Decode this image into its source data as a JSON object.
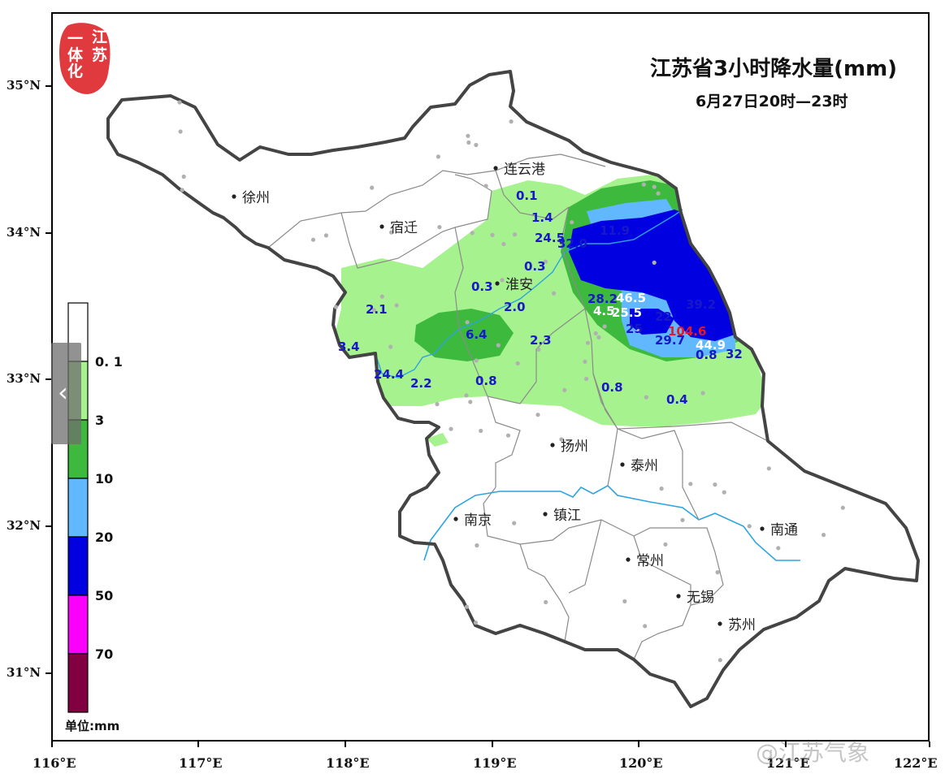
{
  "title": "江苏省3小时降水量(mm)",
  "subtitle": "6月27日20时—23时",
  "logo_text": "江苏一体化",
  "watermark": "@江苏气象",
  "legend": {
    "unit": "单位:mm",
    "bins": [
      {
        "label": "0. 1",
        "color": "#ffffff"
      },
      {
        "label": "3",
        "color": "#a6f28f"
      },
      {
        "label": "10",
        "color": "#3dba3d"
      },
      {
        "label": "20",
        "color": "#61b8ff"
      },
      {
        "label": "50",
        "color": "#0000e1"
      },
      {
        "label": "70",
        "color": "#fa00fa"
      },
      {
        "label": "",
        "color": "#800040"
      }
    ]
  },
  "axes": {
    "lat_labels": [
      "35°N",
      "34°N",
      "33°N",
      "32°N",
      "31°N"
    ],
    "lon_labels": [
      "116°E",
      "117°E",
      "118°E",
      "119°E",
      "120°E",
      "121°E",
      "122°E"
    ]
  },
  "cities": [
    {
      "name": "连云港"
    },
    {
      "name": "徐州"
    },
    {
      "name": "宿迁"
    },
    {
      "name": "淮安"
    },
    {
      "name": "扬州"
    },
    {
      "name": "泰州"
    },
    {
      "name": "南京"
    },
    {
      "name": "镇江"
    },
    {
      "name": "南通"
    },
    {
      "name": "常州"
    },
    {
      "name": "无锡"
    },
    {
      "name": "苏州"
    }
  ],
  "station_values": [
    "0.1",
    "1.4",
    "24.5",
    "32.0",
    "0.3",
    "0.3",
    "2.1",
    "2.0",
    "6.4",
    "2.3",
    "3.4",
    "24.4",
    "2.2",
    "0.8",
    "0.8",
    "0.4",
    "28.2",
    "4.5",
    "25.5",
    "25",
    "29.7",
    "44.9",
    "0.8",
    "32",
    "11.9",
    "46.5",
    "22",
    "39.2",
    "104.6"
  ],
  "nav_handle_glyph": "‹"
}
